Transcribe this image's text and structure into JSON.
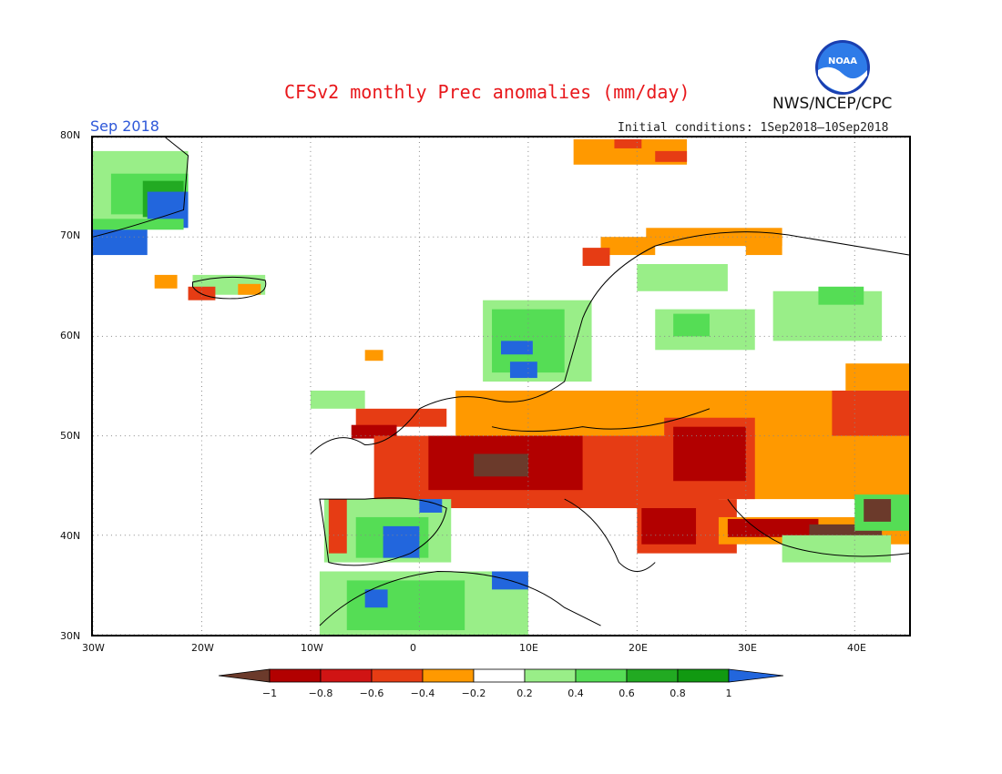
{
  "header": {
    "title": "CFSv2 monthly Prec anomalies (mm/day)",
    "agency": "NWS/NCEP/CPC",
    "month": "Sep 2018",
    "initial_conditions": "Initial conditions: 1Sep2018–10Sep2018",
    "logo_text": "NOAA"
  },
  "map": {
    "region": "Europe",
    "lon_range": [
      -30,
      45
    ],
    "lat_range": [
      30,
      80
    ],
    "lat_labels": [
      "80N",
      "70N",
      "60N",
      "50N",
      "40N",
      "30N"
    ],
    "lon_labels": [
      "30W",
      "20W",
      "10W",
      "0",
      "10E",
      "20E",
      "30E",
      "40E"
    ],
    "gridlines": "dotted",
    "colors": {
      "dry_strong": "#6b3a2b",
      "dry_1": "#b20000",
      "dry_2": "#e63c14",
      "dry_3": "#ff9900",
      "wet_1": "#99ee88",
      "wet_2": "#55dd55",
      "wet_3": "#22aa22",
      "wet_strong": "#2266dd"
    },
    "anomaly_regions": [
      {
        "name": "Greenland east coast",
        "category": "wet"
      },
      {
        "name": "Iceland",
        "category": "dry"
      },
      {
        "name": "Scandinavian north coast",
        "category": "dry"
      },
      {
        "name": "Southern Norway",
        "category": "wet"
      },
      {
        "name": "Finland / NW Russia",
        "category": "wet"
      },
      {
        "name": "Central Europe",
        "category": "dry"
      },
      {
        "name": "France / Alps",
        "category": "dry"
      },
      {
        "name": "Balkans / Romania",
        "category": "dry"
      },
      {
        "name": "Turkey / Greece",
        "category": "dry"
      },
      {
        "name": "Iberia",
        "category": "wet"
      },
      {
        "name": "Northwest Africa",
        "category": "wet"
      },
      {
        "name": "Eastern Russia",
        "category": "dry"
      }
    ]
  },
  "colorbar": {
    "tick_labels": [
      "−1",
      "−0.8",
      "−0.6",
      "−0.4",
      "−0.2",
      "0.2",
      "0.4",
      "0.6",
      "0.8",
      "1"
    ],
    "segment_colors": [
      "#6b3a2b",
      "#b20000",
      "#d01414",
      "#e63c14",
      "#ff9900",
      "#ffffff",
      "#99ee88",
      "#55dd55",
      "#22aa22",
      "#119911",
      "#2266dd"
    ]
  }
}
